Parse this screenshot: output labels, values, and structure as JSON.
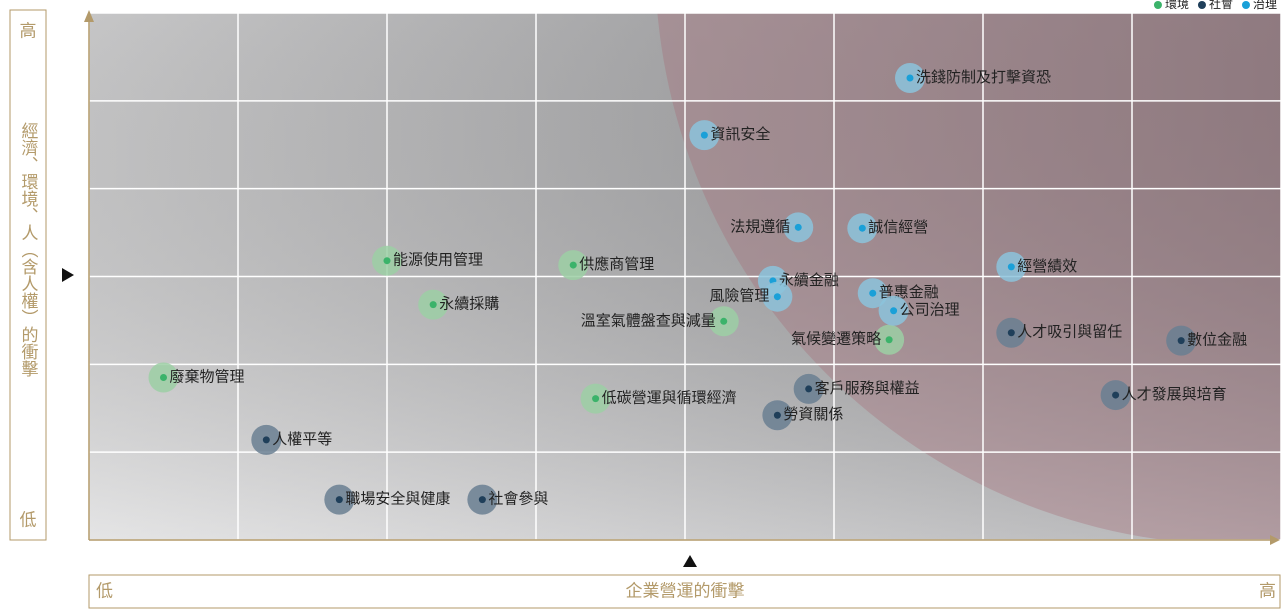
{
  "chart_data": {
    "type": "scatter",
    "x_label": "企業營運的衝擊",
    "y_label": "經濟、環境、人（含人權）的衝擊",
    "low_label": "低",
    "high_label": "高",
    "xlim": [
      0,
      8
    ],
    "ylim": [
      0,
      6
    ],
    "xticks": [
      0,
      1,
      2,
      3,
      4,
      5,
      6,
      7,
      8
    ],
    "yticks": [
      0,
      1,
      2,
      3,
      4,
      5,
      6
    ],
    "grid": true,
    "legend": "top-right",
    "series": [
      {
        "name": "環境",
        "color": "#3bb36a",
        "halo": "#9ccfa5",
        "labels": [
          "能源使用管理",
          "供應商管理",
          "永續採購",
          "溫室氣體盤查與減量",
          "氣候變遷策略",
          "廢棄物管理",
          "低碳營運與循環經濟"
        ],
        "x": [
          2.0,
          3.25,
          2.31,
          4.26,
          5.37,
          0.5,
          3.4
        ],
        "y": [
          3.18,
          3.13,
          2.68,
          2.49,
          2.28,
          1.85,
          1.61
        ]
      },
      {
        "name": "社會",
        "color": "#1f3f5a",
        "halo": "#6a7f92",
        "labels": [
          "人才吸引與留任",
          "數位金融",
          "客戶服務與權益",
          "人才發展與培育",
          "勞資關係",
          "人權平等",
          "職場安全與健康",
          "社會參與"
        ],
        "x": [
          6.19,
          7.33,
          4.83,
          6.89,
          4.62,
          1.19,
          1.68,
          2.64
        ],
        "y": [
          2.36,
          2.27,
          1.72,
          1.65,
          1.42,
          1.14,
          0.46,
          0.46
        ]
      },
      {
        "name": "治理",
        "color": "#1aa0d8",
        "halo": "#8cc3dc",
        "labels": [
          "洗錢防制及打擊資恐",
          "資訊安全",
          "法規遵循",
          "誠信經營",
          "永續金融",
          "風險管理",
          "普惠金融",
          "公司治理",
          "經營績效"
        ],
        "x": [
          5.51,
          4.13,
          4.76,
          5.19,
          4.59,
          4.62,
          5.26,
          5.4,
          6.19
        ],
        "y": [
          5.26,
          4.61,
          3.56,
          3.55,
          2.95,
          2.77,
          2.81,
          2.61,
          3.11
        ]
      }
    ]
  }
}
